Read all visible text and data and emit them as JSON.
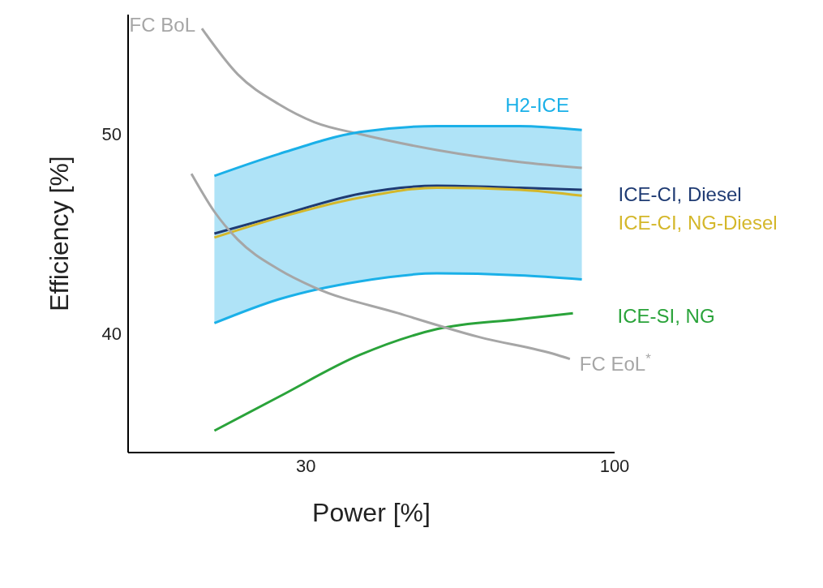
{
  "chart_data": {
    "type": "line",
    "xlabel": "Power [%]",
    "ylabel": "Efficiency [%]",
    "log": "x",
    "xlim": [
      15,
      100
    ],
    "xticks": [
      30,
      100
    ],
    "ylim": [
      34,
      56
    ],
    "yticks": [
      40,
      50
    ],
    "grid": false,
    "legend": false,
    "series": [
      {
        "name": "FC BoL",
        "color": "#a6a6a6",
        "x": [
          20,
          23,
          27,
          31,
          37,
          50,
          69,
          88
        ],
        "values": [
          55.3,
          53.0,
          51.5,
          50.6,
          50.0,
          49.2,
          48.6,
          48.3
        ]
      },
      {
        "name": "H2-ICE",
        "type": "area",
        "color": "#1ab0e8",
        "x": [
          21,
          27,
          37,
          50,
          69,
          88
        ],
        "values": [
          47.9,
          49.0,
          50.1,
          50.4,
          50.4,
          50.2
        ]
      },
      {
        "type": "line",
        "color": "#1ab0e8",
        "x": [
          21,
          27,
          37,
          50,
          69,
          88
        ],
        "values": [
          40.5,
          41.7,
          42.6,
          43.0,
          42.9,
          42.7
        ]
      },
      {
        "name": "ICE-CI, Diesel",
        "color": "#1f3b73",
        "x": [
          21,
          27,
          37,
          50,
          69,
          88
        ],
        "values": [
          45.0,
          45.9,
          47.0,
          47.4,
          47.3,
          47.2
        ]
      },
      {
        "name": "ICE-CI, NG-Diesel",
        "color": "#d4b72a",
        "x": [
          21,
          27,
          37,
          50,
          69,
          88
        ],
        "values": [
          44.8,
          45.8,
          46.8,
          47.3,
          47.2,
          46.9
        ]
      },
      {
        "name": "ICE-SI, NG",
        "color": "#2aa33a",
        "x": [
          21,
          27,
          37,
          50,
          69,
          85
        ],
        "values": [
          35.1,
          36.8,
          38.9,
          40.2,
          40.7,
          41.0
        ]
      },
      {
        "name": "FC EoL$^{*}$",
        "color": "#a6a6a6",
        "x": [
          19.2,
          21,
          23,
          27,
          31,
          43,
          59,
          80,
          84
        ],
        "values": [
          48.0,
          46.1,
          44.7,
          43.2,
          42.3,
          41.0,
          39.8,
          38.9,
          38.7
        ]
      }
    ]
  }
}
